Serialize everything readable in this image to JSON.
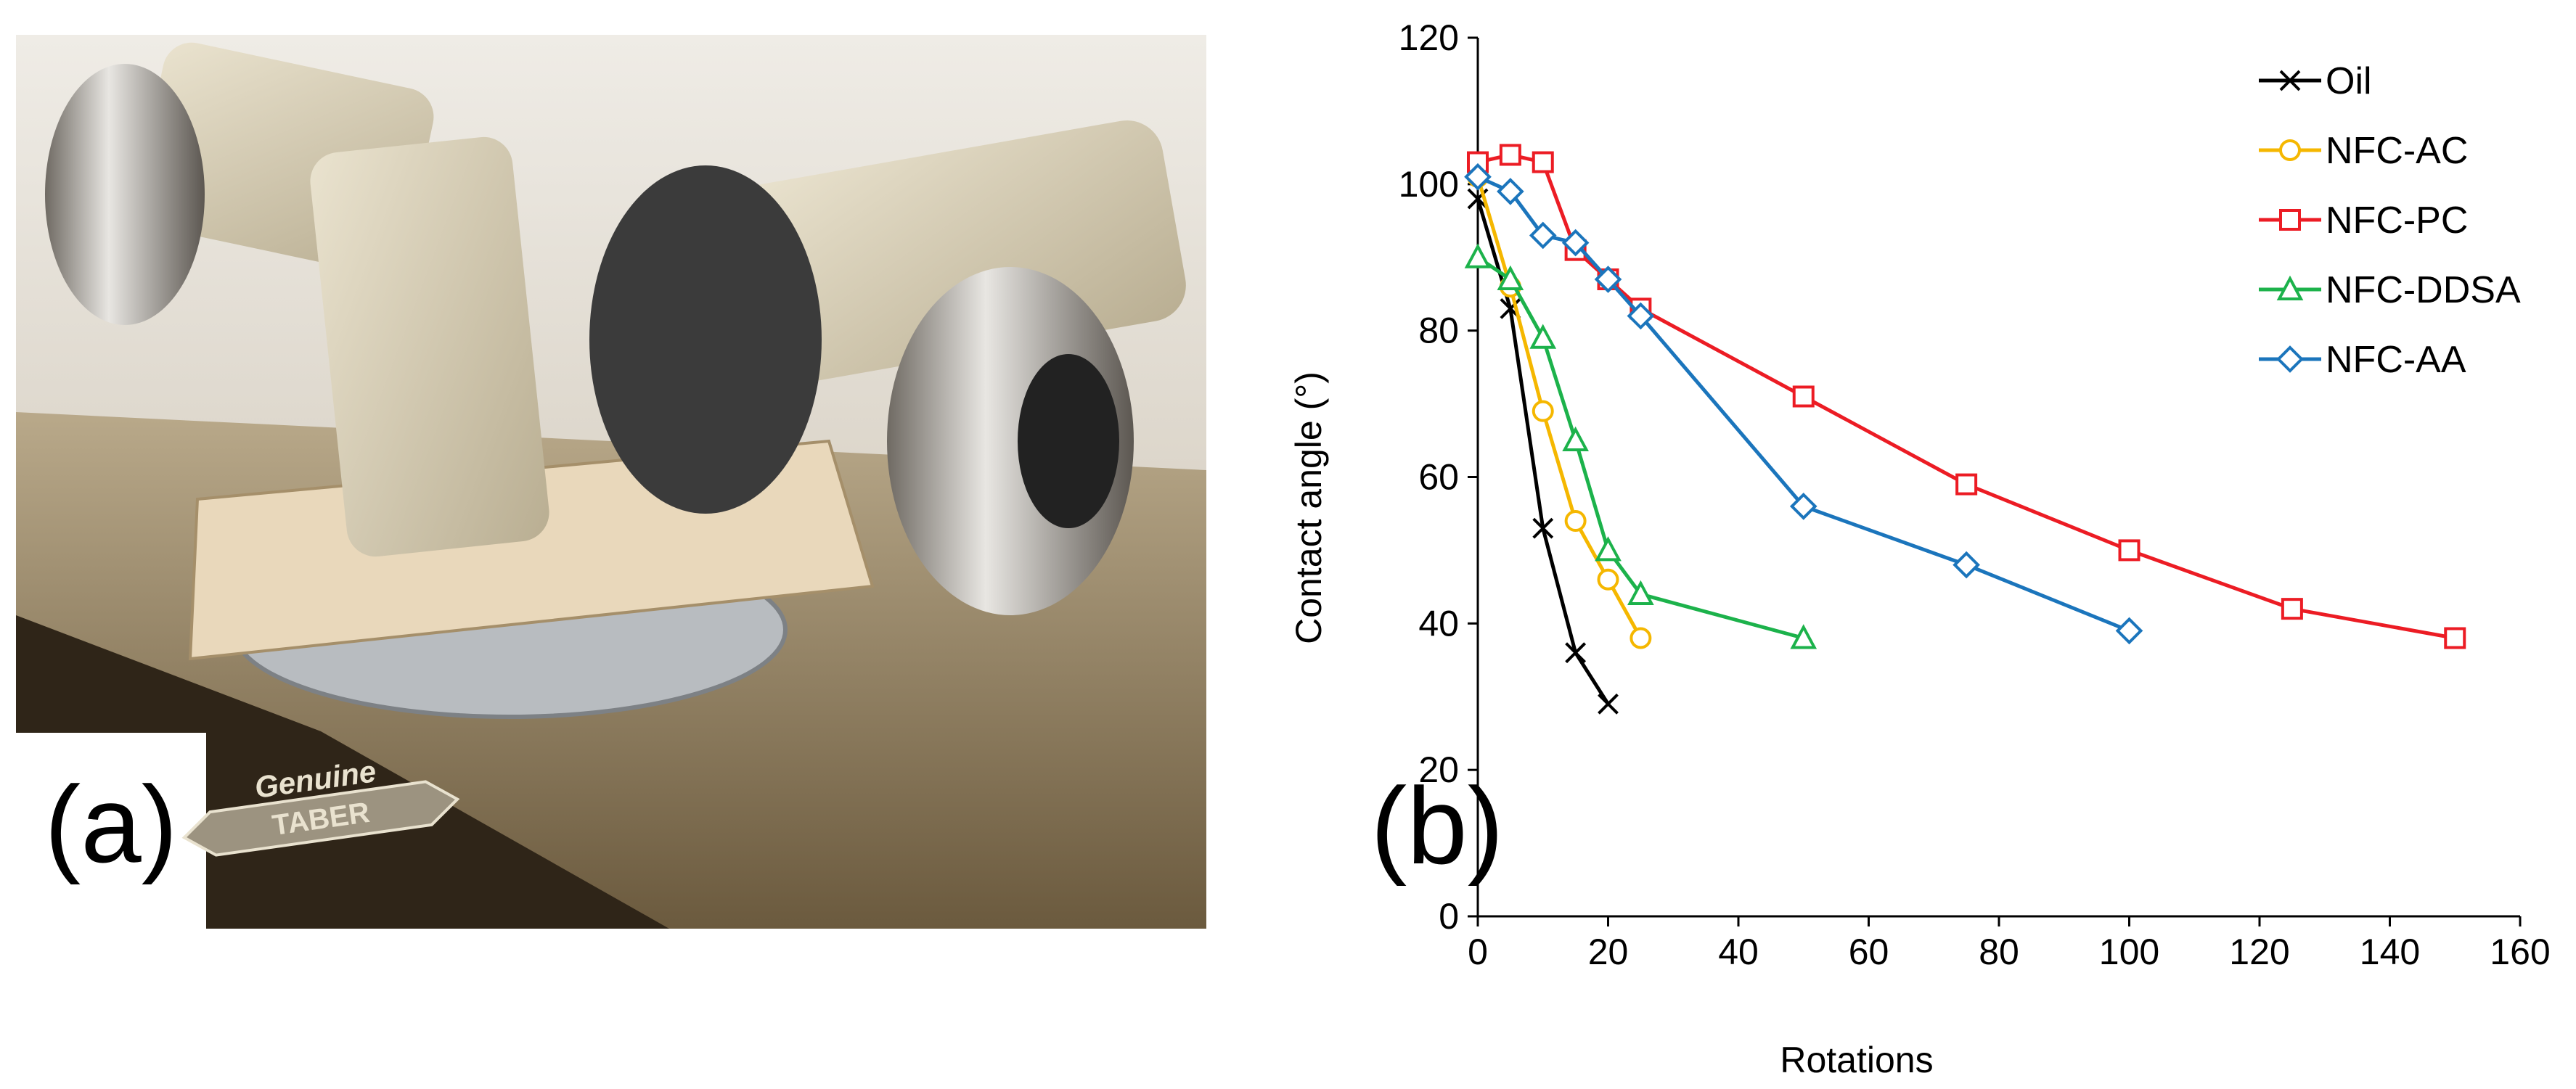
{
  "panel_a": {
    "label": "(a)",
    "logo_text": [
      "Genuine",
      "TABER"
    ]
  },
  "chart_data": {
    "type": "line",
    "panel_label": "(b)",
    "xlabel": "Rotations",
    "ylabel": "Contact angle (°)",
    "xlim": [
      0,
      160
    ],
    "ylim": [
      0,
      120
    ],
    "xticks": [
      0,
      20,
      40,
      60,
      80,
      100,
      120,
      140,
      160
    ],
    "yticks": [
      0,
      20,
      40,
      60,
      80,
      100,
      120
    ],
    "grid": false,
    "legend_position": "top-right",
    "series": [
      {
        "name": "Oil",
        "color": "#000000",
        "marker": "x",
        "x": [
          0,
          5,
          10,
          15,
          20
        ],
        "y": [
          98,
          83,
          53,
          36,
          29
        ]
      },
      {
        "name": "NFC-AC",
        "color": "#f5b700",
        "marker": "circle",
        "x": [
          0,
          5,
          10,
          15,
          20,
          25
        ],
        "y": [
          101,
          86,
          69,
          54,
          46,
          38
        ]
      },
      {
        "name": "NFC-PC",
        "color": "#ec1c24",
        "marker": "square",
        "x": [
          0,
          5,
          10,
          15,
          20,
          25,
          50,
          75,
          100,
          125,
          150
        ],
        "y": [
          103,
          104,
          103,
          91,
          87,
          83,
          71,
          59,
          50,
          42,
          38
        ]
      },
      {
        "name": "NFC-DDSA",
        "color": "#1cb24b",
        "marker": "triangle",
        "x": [
          0,
          5,
          10,
          15,
          20,
          25,
          50
        ],
        "y": [
          90,
          87,
          79,
          65,
          50,
          44,
          38
        ]
      },
      {
        "name": "NFC-AA",
        "color": "#1b75bc",
        "marker": "diamond",
        "x": [
          0,
          5,
          10,
          15,
          20,
          25,
          50,
          75,
          100
        ],
        "y": [
          101,
          99,
          93,
          92,
          87,
          82,
          56,
          48,
          39
        ]
      }
    ]
  }
}
